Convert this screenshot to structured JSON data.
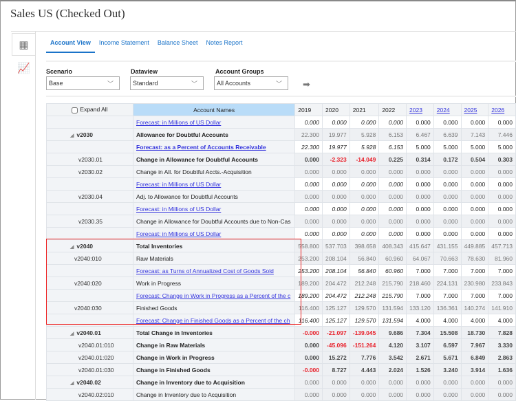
{
  "title": "Sales US (Checked Out)",
  "sidebar": [
    {
      "icon": "grid-icon"
    },
    {
      "icon": "chart-icon"
    }
  ],
  "tabs": [
    {
      "label": "Account View",
      "active": true
    },
    {
      "label": "Income Statement"
    },
    {
      "label": "Balance Sheet"
    },
    {
      "label": "Notes Report"
    }
  ],
  "filters": {
    "scenario": {
      "label": "Scenario",
      "value": "Base"
    },
    "dataview": {
      "label": "Dataview",
      "value": "Standard"
    },
    "groups": {
      "label": "Account Groups",
      "value": "All Accounts"
    }
  },
  "table": {
    "expand_all": "Expand All",
    "names_header": "Account Names",
    "years": [
      "2019",
      "2020",
      "2021",
      "2022",
      "2023",
      "2024",
      "2025",
      "2026"
    ],
    "linked_years": [
      "2023",
      "2024",
      "2025",
      "2026"
    ],
    "rows": [
      {
        "code": "",
        "name": "Forecast: in Millions of US Dollar",
        "kind": "forecast",
        "values": [
          "0.000",
          "0.000",
          "0.000",
          "0.000",
          "0.000",
          "0.000",
          "0.000",
          "0.000"
        ]
      },
      {
        "code": "v2030",
        "group": true,
        "name": "Allowance for Doubtful Accounts",
        "nameBold": true,
        "kind": "normal",
        "values": [
          "22.300",
          "19.977",
          "5.928",
          "6.153",
          "6.467",
          "6.639",
          "7.143",
          "7.446"
        ]
      },
      {
        "code": "",
        "name": "Forecast: as a Percent of Accounts Receivable",
        "nameBold": true,
        "kind": "forecast",
        "values": [
          "22.300",
          "19.977",
          "5.928",
          "6.153",
          "5.000",
          "5.000",
          "5.000",
          "5.000"
        ]
      },
      {
        "code": "v2030.01",
        "name": "Change in Allowance for Doubtful Accounts",
        "nameBold": true,
        "kind": "bold",
        "values": [
          "0.000",
          "-2.323",
          "-14.049",
          "0.225",
          "0.314",
          "0.172",
          "0.504",
          "0.303"
        ]
      },
      {
        "code": "v2030.02",
        "name": "Change in All. for Doubtful Accts.-Acquisition",
        "kind": "normal",
        "values": [
          "0.000",
          "0.000",
          "0.000",
          "0.000",
          "0.000",
          "0.000",
          "0.000",
          "0.000"
        ]
      },
      {
        "code": "",
        "name": "Forecast: in Millions of US Dollar",
        "kind": "forecast",
        "values": [
          "0.000",
          "0.000",
          "0.000",
          "0.000",
          "0.000",
          "0.000",
          "0.000",
          "0.000"
        ]
      },
      {
        "code": "v2030.04",
        "name": "Adj. to Allowance for Doubtful Accounts",
        "kind": "normal",
        "values": [
          "0.000",
          "0.000",
          "0.000",
          "0.000",
          "0.000",
          "0.000",
          "0.000",
          "0.000"
        ]
      },
      {
        "code": "",
        "name": "Forecast: in Millions of US Dollar",
        "kind": "forecast",
        "values": [
          "0.000",
          "0.000",
          "0.000",
          "0.000",
          "0.000",
          "0.000",
          "0.000",
          "0.000"
        ]
      },
      {
        "code": "v2030.35",
        "name": "Change in Allowance for Doubtful Accounts due to Non-Cas",
        "kind": "normal",
        "values": [
          "0.000",
          "0.000",
          "0.000",
          "0.000",
          "0.000",
          "0.000",
          "0.000",
          "0.000"
        ]
      },
      {
        "code": "",
        "name": "Forecast: in Millions of US Dollar",
        "kind": "forecast",
        "values": [
          "0.000",
          "0.000",
          "0.000",
          "0.000",
          "0.000",
          "0.000",
          "0.000",
          "0.000"
        ]
      },
      {
        "code": "v2040",
        "group": true,
        "name": "Total Inventories",
        "nameBold": true,
        "kind": "normal",
        "values": [
          "558.800",
          "537.703",
          "398.658",
          "408.343",
          "415.647",
          "431.155",
          "449.885",
          "457.713"
        ]
      },
      {
        "code": "v2040:010",
        "name": "Raw Materials",
        "kind": "normal",
        "values": [
          "253.200",
          "208.104",
          "56.840",
          "60.960",
          "64.067",
          "70.663",
          "78.630",
          "81.960"
        ]
      },
      {
        "code": "",
        "name": "Forecast: as Turns of Annualized Cost of Goods Sold",
        "kind": "forecast",
        "values": [
          "253.200",
          "208.104",
          "56.840",
          "60.960",
          "7.000",
          "7.000",
          "7.000",
          "7.000"
        ]
      },
      {
        "code": "v2040:020",
        "name": "Work in Progress",
        "kind": "normal",
        "values": [
          "189.200",
          "204.472",
          "212.248",
          "215.790",
          "218.460",
          "224.131",
          "230.980",
          "233.843"
        ]
      },
      {
        "code": "",
        "name": "Forecast: Change in Work in Progress as a Percent of the c",
        "kind": "forecast",
        "values": [
          "189.200",
          "204.472",
          "212.248",
          "215.790",
          "7.000",
          "7.000",
          "7.000",
          "7.000"
        ]
      },
      {
        "code": "v2040:030",
        "name": "Finished Goods",
        "kind": "normal",
        "values": [
          "116.400",
          "125.127",
          "129.570",
          "131.594",
          "133.120",
          "136.361",
          "140.274",
          "141.910"
        ]
      },
      {
        "code": "",
        "name": "Forecast: Change in Finished Goods as a Percent of the ch",
        "kind": "forecast",
        "values": [
          "116.400",
          "125.127",
          "129.570",
          "131.594",
          "4.000",
          "4.000",
          "4.000",
          "4.000"
        ]
      },
      {
        "code": "v2040.01",
        "group": true,
        "name": "Total Change in Inventories",
        "nameBold": true,
        "kind": "bold",
        "values": [
          "-0.000",
          "-21.097",
          "-139.045",
          "9.686",
          "7.304",
          "15.508",
          "18.730",
          "7.828"
        ]
      },
      {
        "code": "v2040.01:010",
        "name": "Change in Raw Materials",
        "nameBold": true,
        "kind": "bold",
        "values": [
          "0.000",
          "-45.096",
          "-151.264",
          "4.120",
          "3.107",
          "6.597",
          "7.967",
          "3.330"
        ]
      },
      {
        "code": "v2040.01:020",
        "name": "Change in Work in Progress",
        "nameBold": true,
        "kind": "bold",
        "values": [
          "0.000",
          "15.272",
          "7.776",
          "3.542",
          "2.671",
          "5.671",
          "6.849",
          "2.863"
        ]
      },
      {
        "code": "v2040.01:030",
        "name": "Change in Finished Goods",
        "nameBold": true,
        "kind": "bold",
        "values": [
          "-0.000",
          "8.727",
          "4.443",
          "2.024",
          "1.526",
          "3.240",
          "3.914",
          "1.636"
        ]
      },
      {
        "code": "v2040.02",
        "group": true,
        "name": "Change in Inventory due to Acquisition",
        "nameBold": true,
        "kind": "normal",
        "values": [
          "0.000",
          "0.000",
          "0.000",
          "0.000",
          "0.000",
          "0.000",
          "0.000",
          "0.000"
        ]
      },
      {
        "code": "v2040.02:010",
        "name": "Change in Inventory due to Acquisition",
        "kind": "normal",
        "values": [
          "0.000",
          "0.000",
          "0.000",
          "0.000",
          "0.000",
          "0.000",
          "0.000",
          "0.000"
        ]
      }
    ]
  },
  "colors": {
    "accent": "#1a73c9",
    "header_highlight": "#b9dcf8",
    "historic_forecast": "#66e066",
    "negative": "#e8202a",
    "selection_box": "#e22222",
    "link": "#3333dd"
  }
}
